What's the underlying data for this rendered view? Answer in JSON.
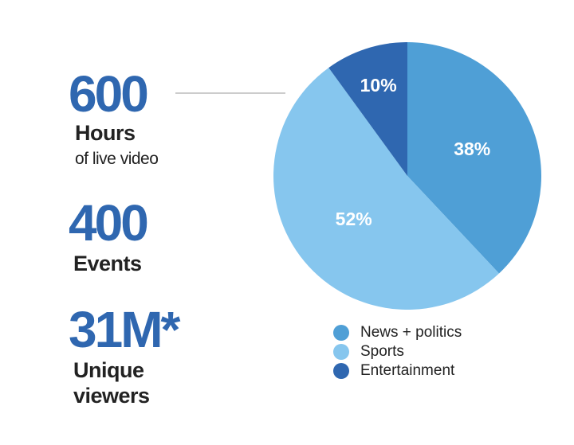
{
  "stats": [
    {
      "value": "600",
      "label": "Hours",
      "detail": "of live video"
    },
    {
      "value": "400",
      "label": "Events"
    },
    {
      "value": "31M*",
      "label": "Unique",
      "detail": "viewers"
    }
  ],
  "chart_data": {
    "type": "pie",
    "categories": [
      "News + politics",
      "Sports",
      "Entertainment"
    ],
    "values": [
      38,
      52,
      10
    ],
    "value_labels": [
      "38%",
      "52%",
      "10%"
    ],
    "colors": [
      "#4f9fd6",
      "#86c6ee",
      "#2f67b0"
    ]
  }
}
